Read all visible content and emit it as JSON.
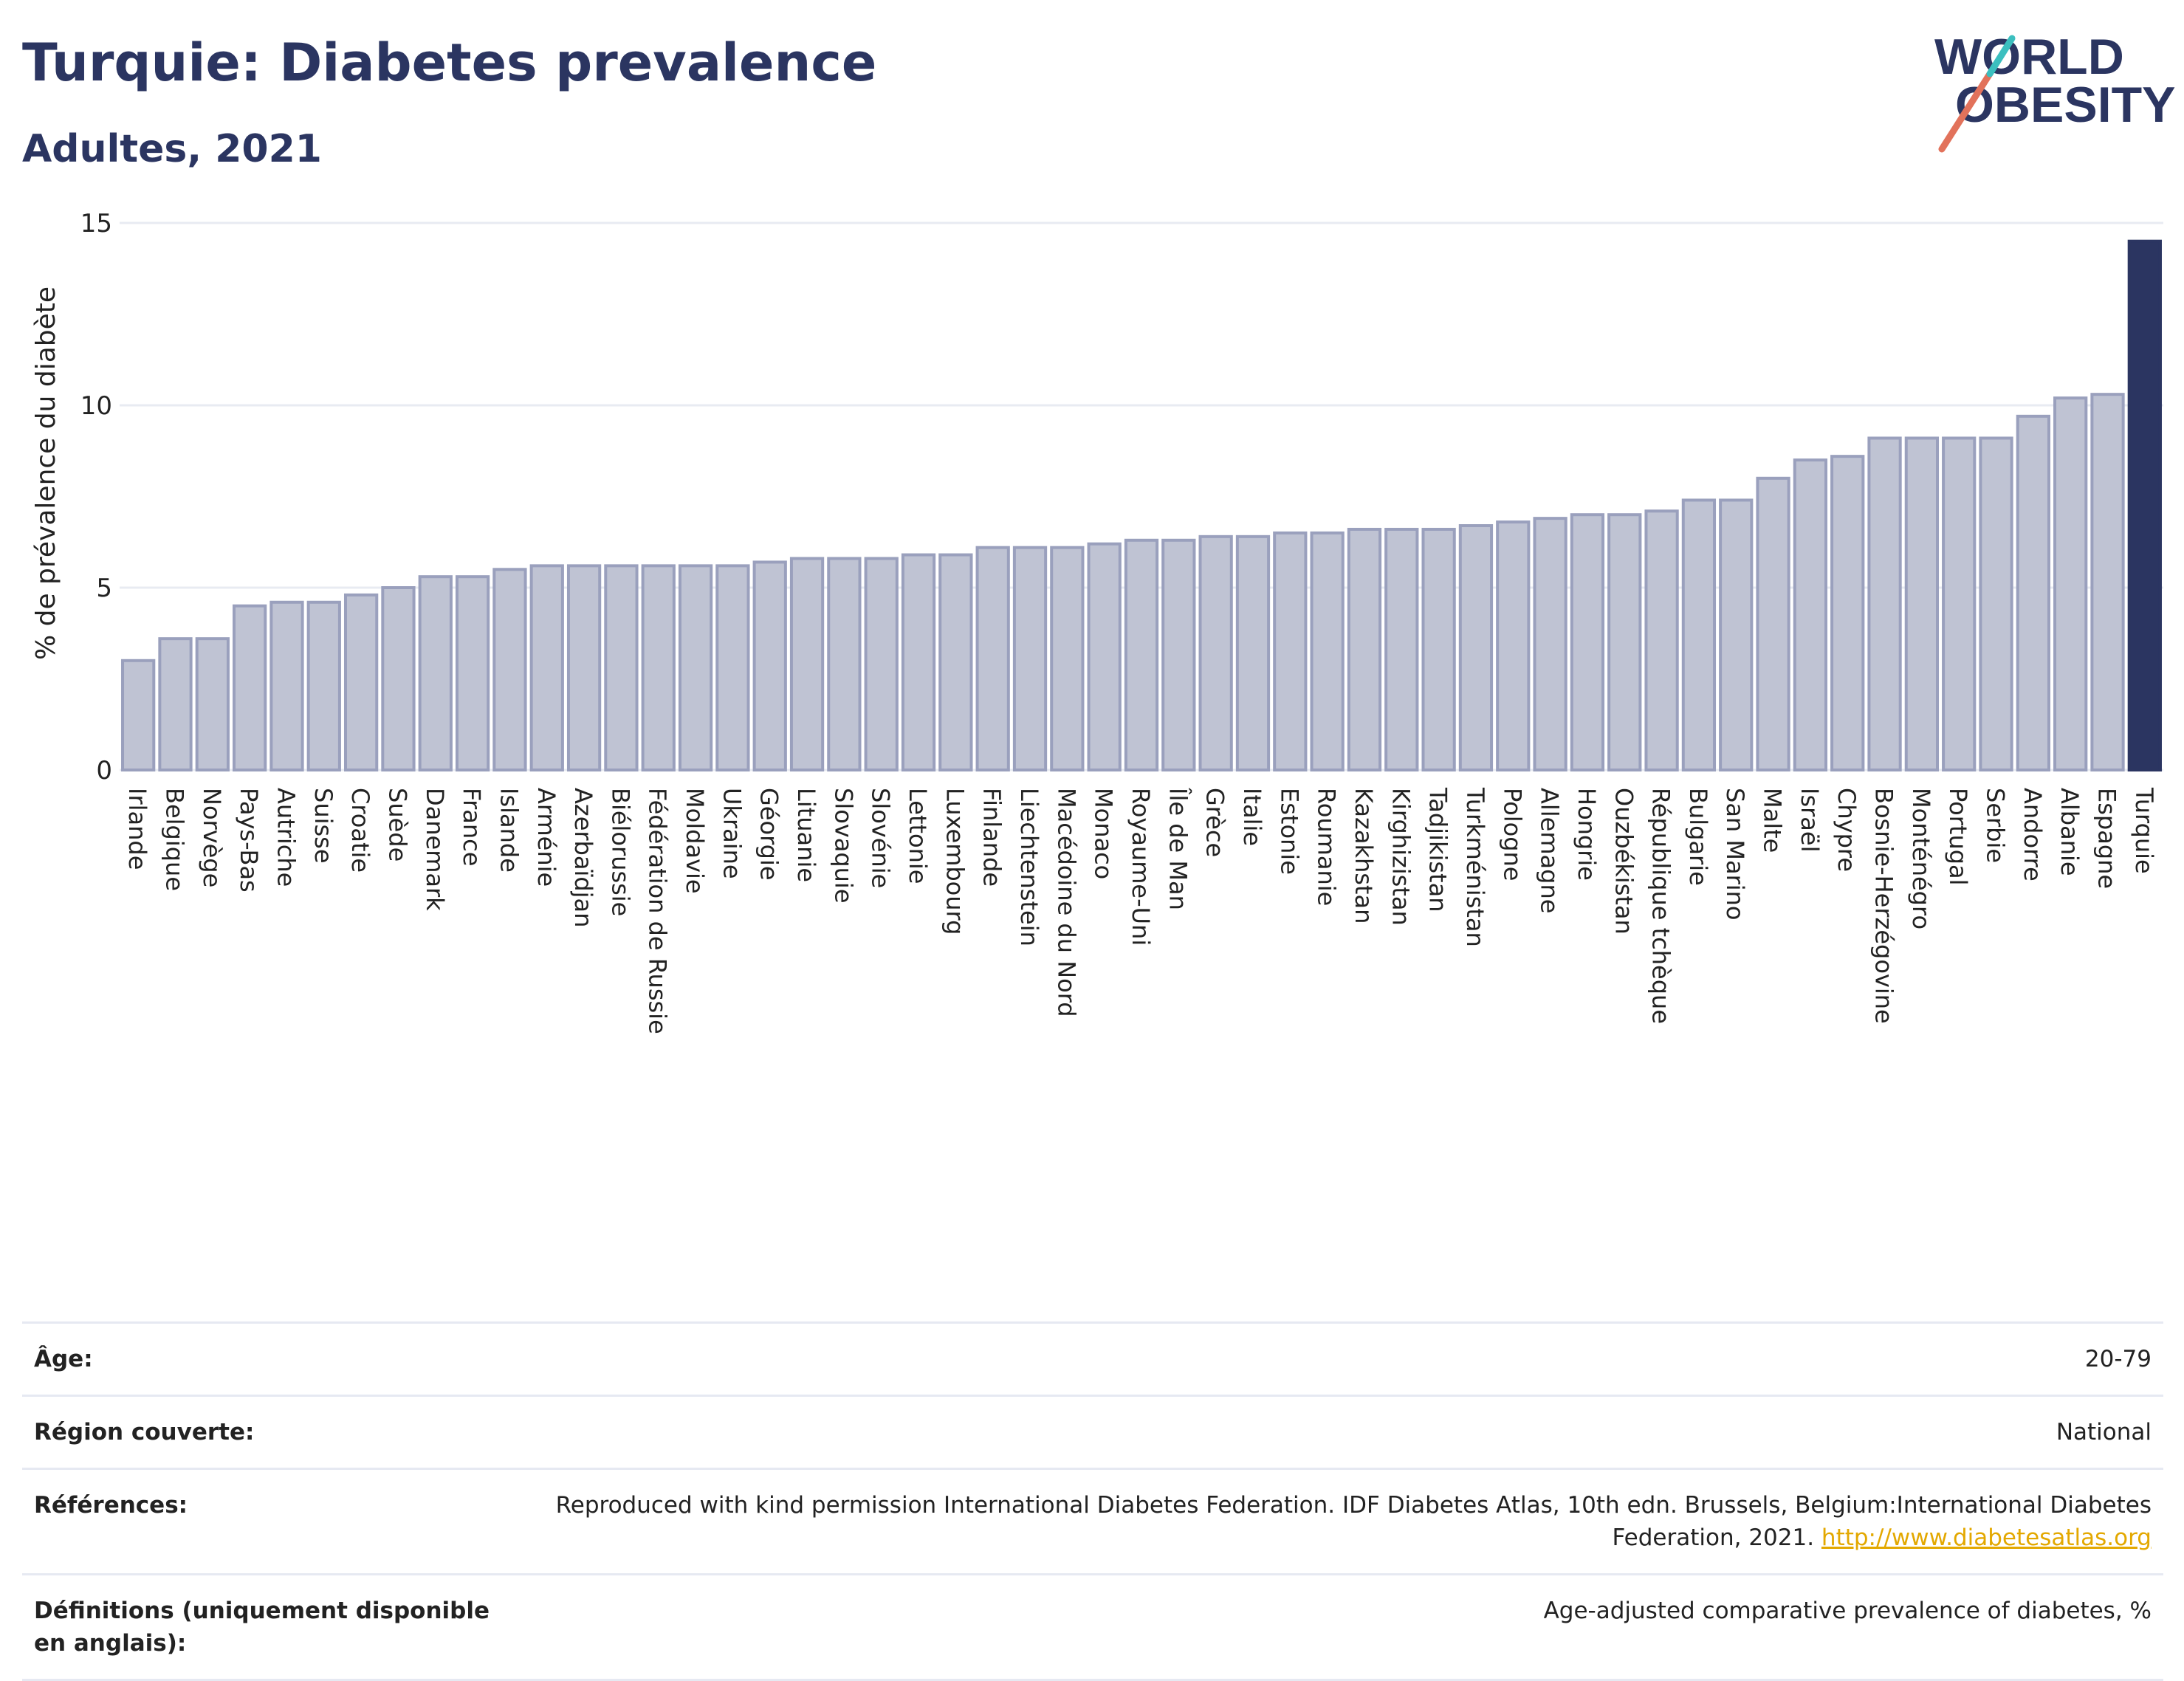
{
  "header": {
    "title": "Turquie: Diabetes prevalence",
    "subtitle": "Adultes, 2021"
  },
  "logo": {
    "line1": "WORLD",
    "line2": "OBESITY",
    "colors": {
      "text": "#2b3561",
      "slash_coral": "#e2725b",
      "slash_teal": "#3bbfbf"
    }
  },
  "colors": {
    "bar_fill": "#bfc3d3",
    "bar_stroke": "#9aa0bd",
    "highlight": "#2b3561",
    "grid": "#e8ebf2",
    "axis_text": "#222222"
  },
  "chart_data": {
    "type": "bar",
    "ylabel": "% de prévalence du diabète",
    "ylim": [
      0,
      15
    ],
    "yticks": [
      0,
      5,
      10,
      15
    ],
    "grid": true,
    "highlight_category": "Turquie",
    "categories": [
      "Irlande",
      "Belgique",
      "Norvège",
      "Pays-Bas",
      "Autriche",
      "Suisse",
      "Croatie",
      "Suède",
      "Danemark",
      "France",
      "Islande",
      "Arménie",
      "Azerbaïdjan",
      "Biélorussie",
      "Fédération de Russie",
      "Moldavie",
      "Ukraine",
      "Géorgie",
      "Lituanie",
      "Slovaquie",
      "Slovénie",
      "Lettonie",
      "Luxembourg",
      "Finlande",
      "Liechtenstein",
      "Macédoine du Nord",
      "Monaco",
      "Royaume-Uni",
      "Île de Man",
      "Grèce",
      "Italie",
      "Estonie",
      "Roumanie",
      "Kazakhstan",
      "Kirghizistan",
      "Tadjikistan",
      "Turkménistan",
      "Pologne",
      "Allemagne",
      "Hongrie",
      "Ouzbékistan",
      "République tchèque",
      "Bulgarie",
      "San Marino",
      "Malte",
      "Israël",
      "Chypre",
      "Bosnie-Herzégovine",
      "Monténégro",
      "Portugal",
      "Serbie",
      "Andorre",
      "Albanie",
      "Espagne",
      "Turquie"
    ],
    "values": [
      3.0,
      3.6,
      3.6,
      4.5,
      4.6,
      4.6,
      4.8,
      5.0,
      5.3,
      5.3,
      5.5,
      5.6,
      5.6,
      5.6,
      5.6,
      5.6,
      5.6,
      5.7,
      5.8,
      5.8,
      5.8,
      5.9,
      5.9,
      6.1,
      6.1,
      6.1,
      6.2,
      6.3,
      6.3,
      6.4,
      6.4,
      6.5,
      6.5,
      6.6,
      6.6,
      6.6,
      6.7,
      6.8,
      6.9,
      7.0,
      7.0,
      7.1,
      7.4,
      7.4,
      8.0,
      8.5,
      8.6,
      9.1,
      9.1,
      9.1,
      9.1,
      9.7,
      10.2,
      10.3,
      14.5
    ]
  },
  "info_table": [
    {
      "key": "Âge:",
      "value": "20-79"
    },
    {
      "key": "Région couverte:",
      "value": "National"
    },
    {
      "key": "Références:",
      "value": "Reproduced with kind permission International Diabetes Federation.  IDF Diabetes Atlas, 10th edn. Brussels, Belgium:International Diabetes Federation, 2021. ",
      "link": "http://www.diabetesatlas.org"
    },
    {
      "key": "Définitions (uniquement disponible en anglais):",
      "value": "Age-adjusted comparative prevalence of diabetes, %"
    }
  ]
}
